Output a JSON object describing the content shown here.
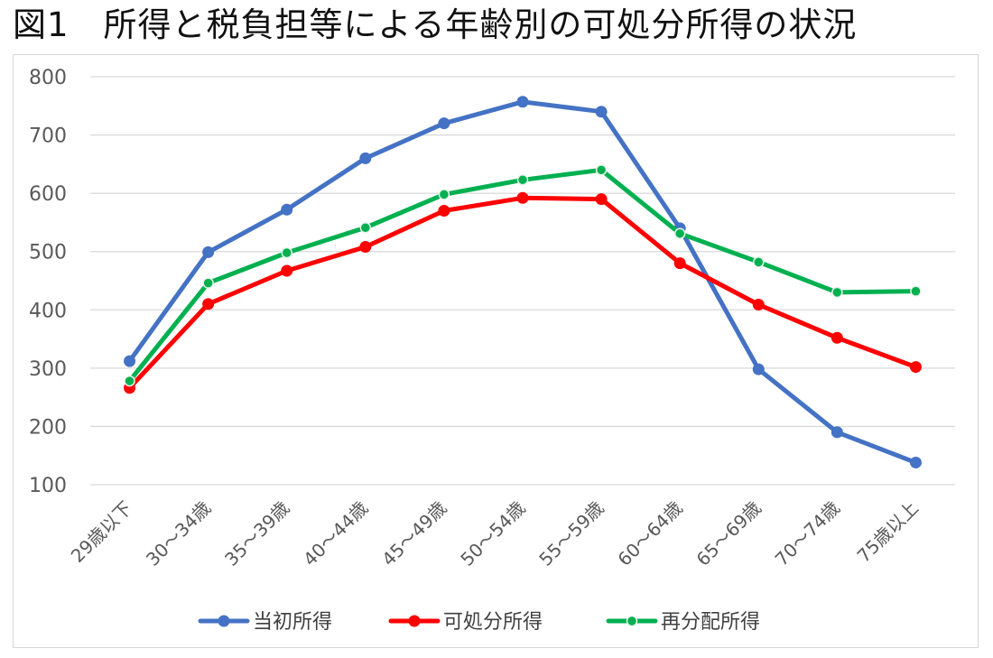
{
  "page_title": "図1　所得と税負担等による年齢別の可処分所得の状況",
  "chart_data": {
    "type": "line",
    "title": "",
    "xlabel": "",
    "ylabel": "",
    "ylim": [
      100,
      800
    ],
    "yticks": [
      100,
      200,
      300,
      400,
      500,
      600,
      700,
      800
    ],
    "grid": true,
    "legend_position": "bottom",
    "categories": [
      "29歳以下",
      "30～34歳",
      "35～39歳",
      "40～44歳",
      "45～49歳",
      "50～54歳",
      "55～59歳",
      "60～64歳",
      "65～69歳",
      "70～74歳",
      "75歳以上"
    ],
    "series": [
      {
        "name": "当初所得",
        "color": "#4472c4",
        "values": [
          312,
          499,
          572,
          660,
          720,
          757,
          740,
          540,
          298,
          190,
          138
        ]
      },
      {
        "name": "可処分所得",
        "color": "#ff0000",
        "values": [
          266,
          410,
          467,
          508,
          570,
          592,
          590,
          480,
          409,
          352,
          302
        ]
      },
      {
        "name": "再分配所得",
        "color": "#00b050",
        "values": [
          278,
          446,
          498,
          541,
          598,
          623,
          640,
          531,
          482,
          430,
          432
        ]
      }
    ]
  }
}
